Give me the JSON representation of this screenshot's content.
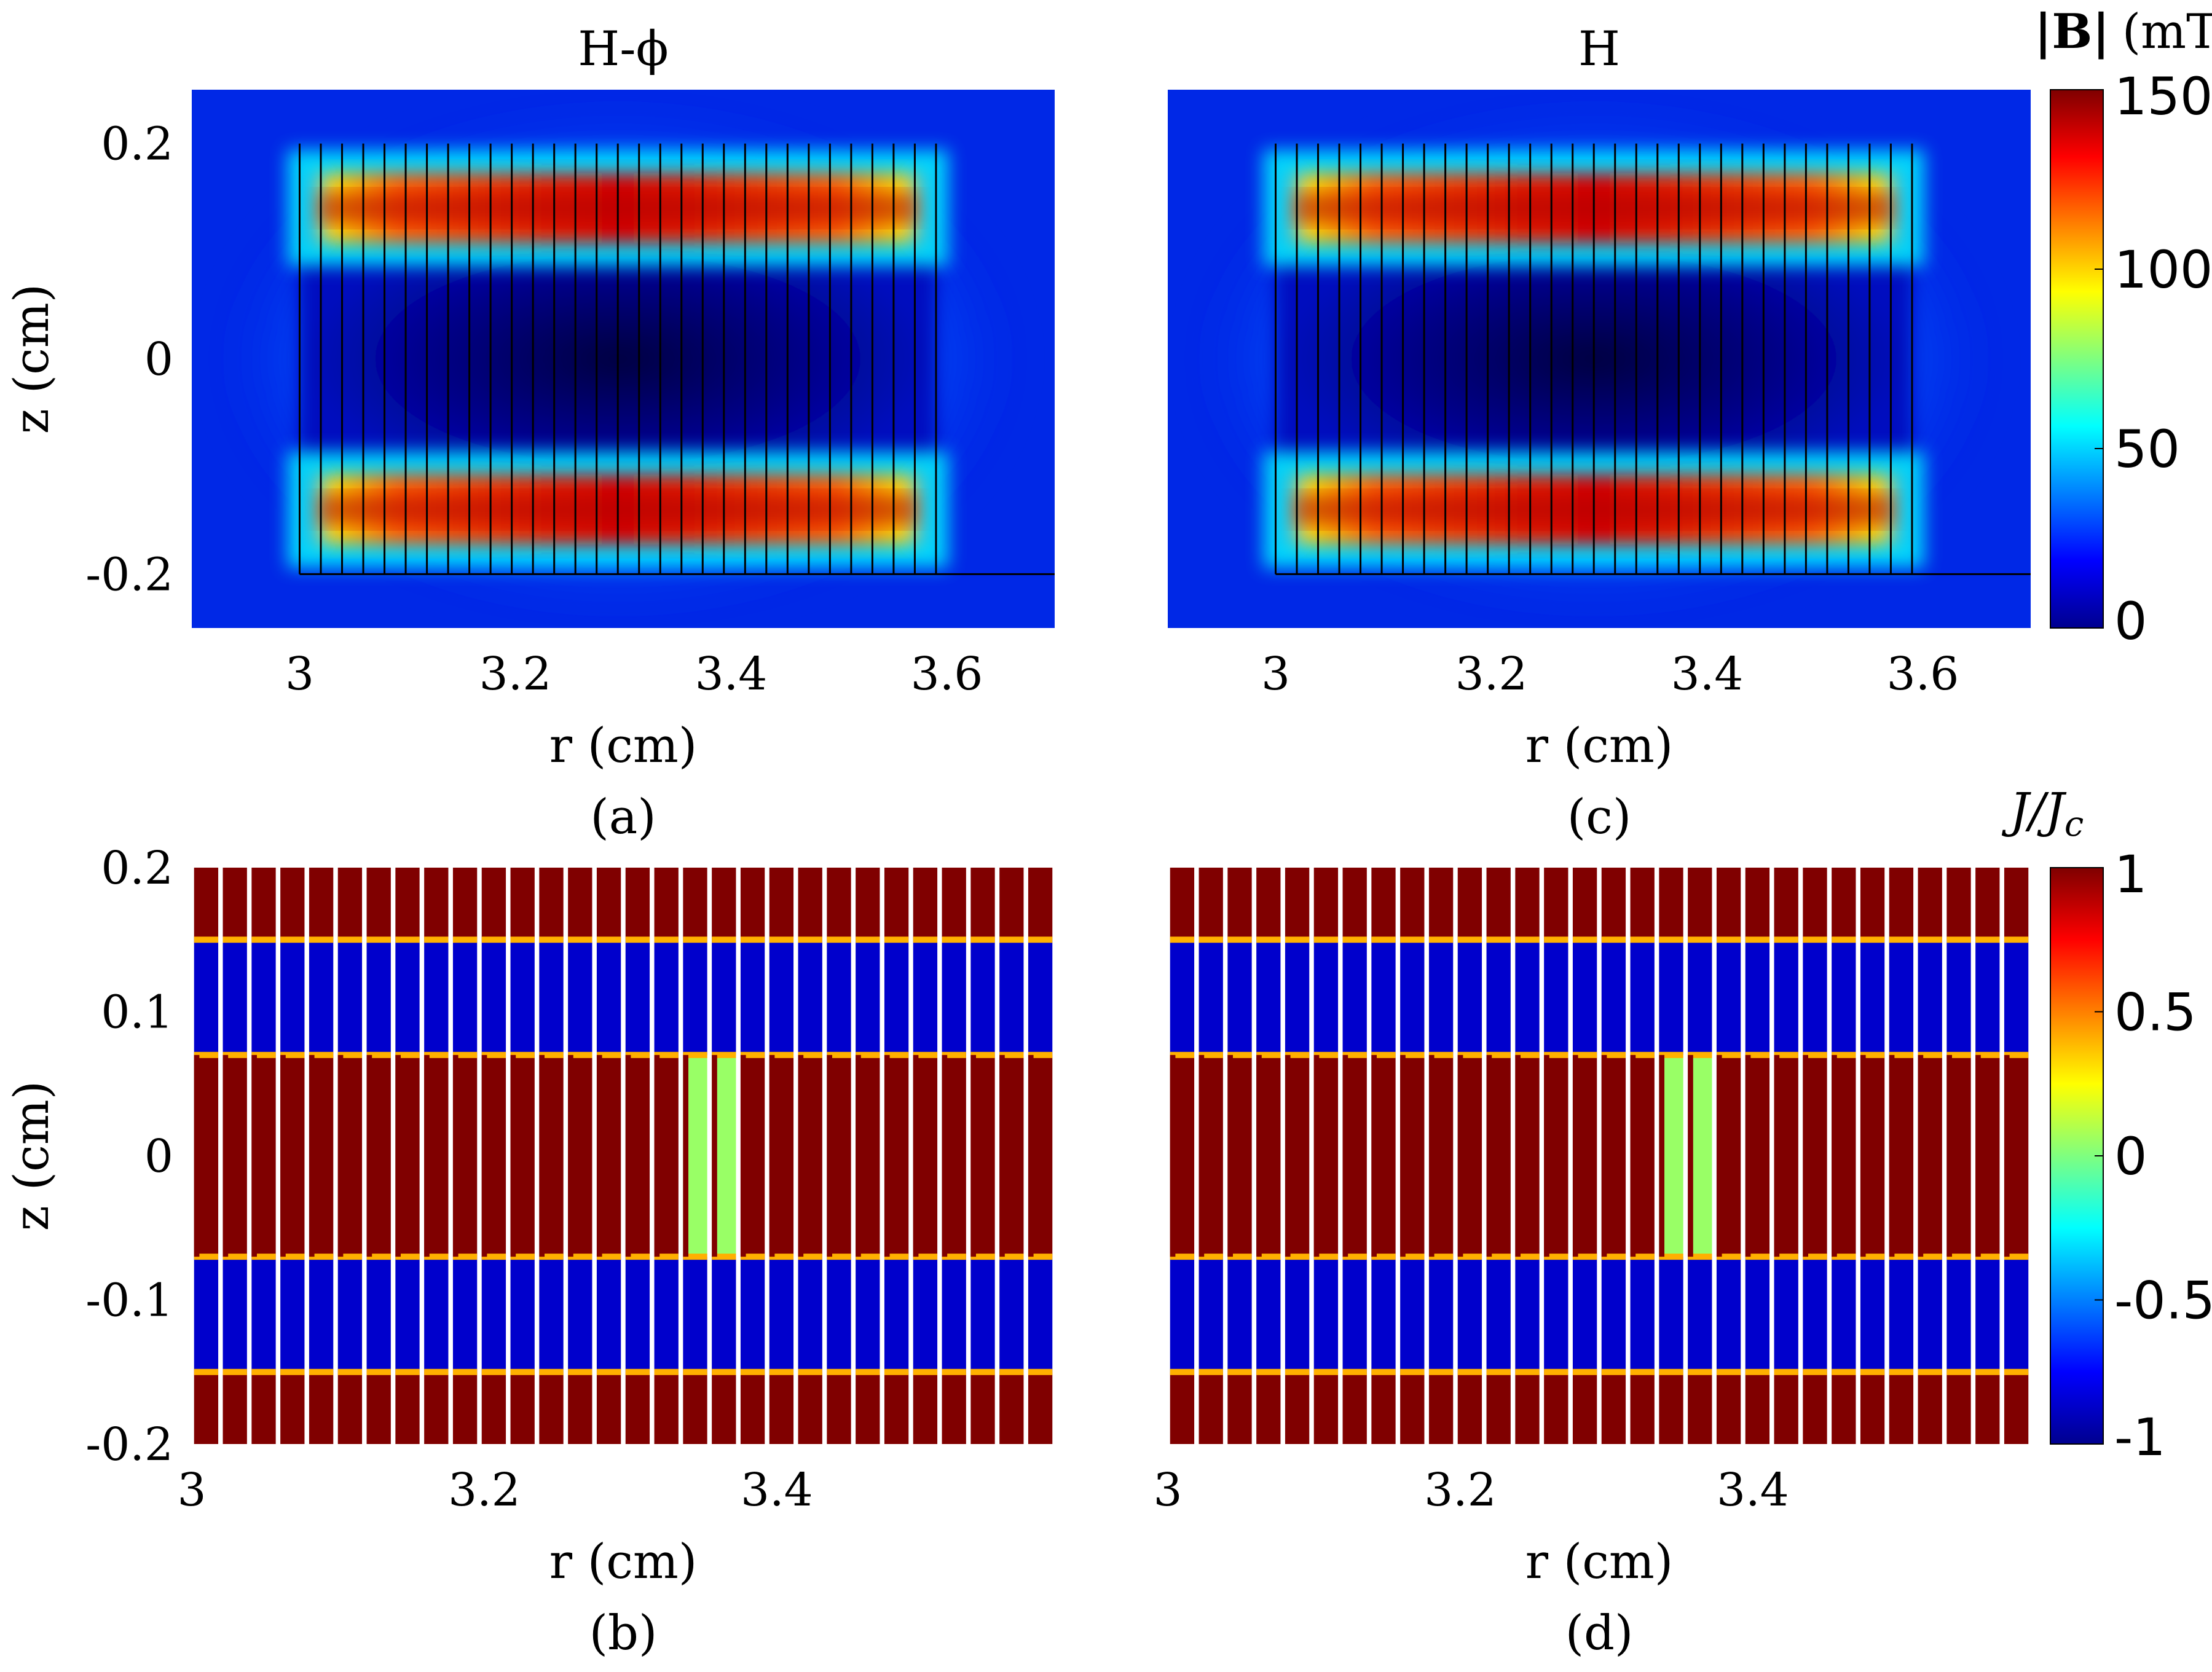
{
  "figure": {
    "panels": [
      {
        "id": "a",
        "title": "H-ϕ",
        "xlabel": "r (cm)",
        "ylabel": "z (cm)",
        "caption": "(a)",
        "x_ticks": [
          "3",
          "3.2",
          "3.4",
          "3.6"
        ],
        "y_ticks": [
          "0.2",
          "0",
          "-0.2"
        ]
      },
      {
        "id": "c",
        "title": "H",
        "xlabel": "r (cm)",
        "ylabel": "",
        "caption": "(c)",
        "x_ticks": [
          "3",
          "3.2",
          "3.4",
          "3.6"
        ],
        "y_ticks": []
      },
      {
        "id": "b",
        "title": "",
        "xlabel": "r (cm)",
        "ylabel": "z (cm)",
        "caption": "(b)",
        "x_ticks": [
          "3",
          "3.2",
          "3.4"
        ],
        "y_ticks": [
          "0.2",
          "0.1",
          "0",
          "-0.1",
          "-0.2"
        ]
      },
      {
        "id": "d",
        "title": "",
        "xlabel": "r (cm)",
        "ylabel": "",
        "caption": "(d)",
        "x_ticks": [
          "3",
          "3.2",
          "3.4"
        ],
        "y_ticks": []
      }
    ],
    "colorbars": [
      {
        "id": "B",
        "label_main": "|B|",
        "label_unit": "(mT)",
        "ticks": [
          "150",
          "100",
          "50",
          "0"
        ]
      },
      {
        "id": "J",
        "label_main": "J/J",
        "label_sub": "c",
        "ticks": [
          "1",
          "0.5",
          "0",
          "-0.5",
          "-1"
        ]
      }
    ]
  },
  "chart_data": [
    {
      "type": "heatmap",
      "panel": "a",
      "title": "H-ϕ",
      "xlabel": "r (cm)",
      "ylabel": "z (cm)",
      "xlim": [
        2.9,
        3.7
      ],
      "ylim": [
        -0.25,
        0.25
      ],
      "colorbar": "|B| (mT)",
      "clim": [
        0,
        150
      ],
      "colormap": "jet",
      "tapes": {
        "count": 30,
        "r_start": 3.0,
        "r_end": 3.59,
        "z_min": -0.2,
        "z_max": 0.2
      },
      "field_bands": [
        {
          "z": 0.14,
          "max_value": 150
        },
        {
          "z": -0.14,
          "max_value": 150
        }
      ],
      "center_value": 0
    },
    {
      "type": "heatmap",
      "panel": "c",
      "title": "H",
      "xlabel": "r (cm)",
      "xlim": [
        2.9,
        3.7
      ],
      "ylim": [
        -0.25,
        0.25
      ],
      "colorbar": "|B| (mT)",
      "clim": [
        0,
        150
      ],
      "colormap": "jet",
      "tapes": {
        "count": 30,
        "r_start": 3.0,
        "r_end": 3.59,
        "z_min": -0.2,
        "z_max": 0.2
      },
      "field_bands": [
        {
          "z": 0.14,
          "max_value": 150
        },
        {
          "z": -0.14,
          "max_value": 150
        }
      ],
      "center_value": 0
    },
    {
      "type": "heatmap",
      "panel": "b",
      "xlabel": "r (cm)",
      "ylabel": "z (cm)",
      "xlim": [
        3.0,
        3.59
      ],
      "ylim": [
        -0.2,
        0.2
      ],
      "colorbar": "J/Jc",
      "clim": [
        -1,
        1
      ],
      "colormap": "jet",
      "tapes": 30,
      "regions": [
        {
          "z_range": [
            0.15,
            0.2
          ],
          "value": 1
        },
        {
          "z_range": [
            0.07,
            0.15
          ],
          "value": -0.85
        },
        {
          "z_range": [
            -0.07,
            0.07
          ],
          "value": 1,
          "note": "centre tapes near r = 3.33-3.36 lower"
        },
        {
          "z_range": [
            -0.15,
            -0.07
          ],
          "value": -0.85
        },
        {
          "z_range": [
            -0.2,
            -0.15
          ],
          "value": 1
        }
      ]
    },
    {
      "type": "heatmap",
      "panel": "d",
      "xlabel": "r (cm)",
      "xlim": [
        3.0,
        3.59
      ],
      "ylim": [
        -0.2,
        0.2
      ],
      "colorbar": "J/Jc",
      "clim": [
        -1,
        1
      ],
      "colormap": "jet",
      "tapes": 30,
      "regions": [
        {
          "z_range": [
            0.15,
            0.2
          ],
          "value": 1
        },
        {
          "z_range": [
            0.07,
            0.15
          ],
          "value": -0.85
        },
        {
          "z_range": [
            -0.07,
            0.07
          ],
          "value": 1
        },
        {
          "z_range": [
            -0.15,
            -0.07
          ],
          "value": -0.85
        },
        {
          "z_range": [
            -0.2,
            -0.15
          ],
          "value": 1
        }
      ]
    }
  ]
}
